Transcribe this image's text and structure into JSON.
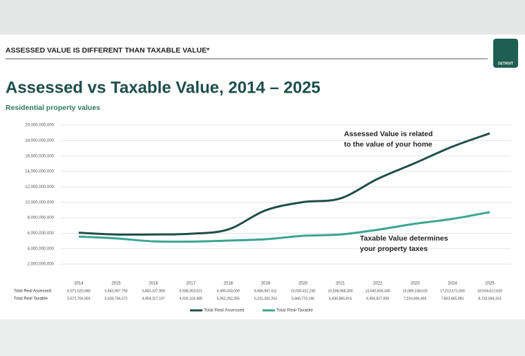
{
  "header": "ASSESSED VALUE IS DIFFERENT THAN TAXABLE VALUE*",
  "logo": "DETROIT",
  "chart_data": {
    "type": "line",
    "title": "Assessed vs Taxable Value, 2014 – 2025",
    "subtitle": "Residential property values",
    "annotations": [
      "Assessed Value is related to the value of your home",
      "Taxable Value determines your property taxes"
    ],
    "categories": [
      "2014",
      "2015",
      "2016",
      "2017",
      "2018",
      "2019",
      "2020",
      "2021",
      "2022",
      "2023",
      "2024",
      "2025"
    ],
    "series": [
      {
        "name": "Total Real Assessed",
        "color": "#1f4e48",
        "values": [
          6071520948,
          5840967750,
          5842337959,
          5938353521,
          6495043000,
          8966967611,
          10030411230,
          10508968300,
          13040504340,
          15089108620,
          17213571500,
          18934612620
        ],
        "value_labels": [
          "6,071,520,948",
          "5,840,967,750",
          "5,842,337,959",
          "5,938,353,521",
          "6,495,043,000",
          "8,966,967,611",
          "10,030,411,230",
          "10,508,968,300",
          "13,040,504,340",
          "15,089,108,620",
          "17,213,571,500",
          "18,934,612,620"
        ]
      },
      {
        "name": "Total Real Taxable",
        "color": "#3aa592",
        "values": [
          5572769959,
          5333756572,
          4954227197,
          4925103485,
          5052252255,
          5231282253,
          5666776196,
          5836865816,
          6456507959,
          7234669459,
          7863465981,
          8733944153
        ],
        "value_labels": [
          "5,572,769,959",
          "5,333,756,572",
          "4,954,227,197",
          "4,925,103,485",
          "5,052,252,255",
          "5,231,282,253",
          "5,666,776,196",
          "5,836,865,816",
          "6,456,507,959",
          "7,234,669,459",
          "7,863,465,981",
          "8,733,944,153"
        ]
      }
    ],
    "ylim": [
      0,
      20000000000
    ],
    "yticks": [
      {
        "value": 2000000000,
        "label": "2,000,000,000"
      },
      {
        "value": 4000000000,
        "label": "4,000,000,000"
      },
      {
        "value": 6000000000,
        "label": "6,000,000,000"
      },
      {
        "value": 8000000000,
        "label": "8,000,000,000"
      },
      {
        "value": 10000000000,
        "label": "10,000,000,000"
      },
      {
        "value": 12000000000,
        "label": "12,000,000,000"
      },
      {
        "value": 14000000000,
        "label": "14,000,000,000"
      },
      {
        "value": 16000000000,
        "label": "16,000,000,000"
      },
      {
        "value": 18000000000,
        "label": "18,000,000,000"
      },
      {
        "value": 20000000000,
        "label": "20,000,000,000"
      }
    ],
    "grid": true
  }
}
